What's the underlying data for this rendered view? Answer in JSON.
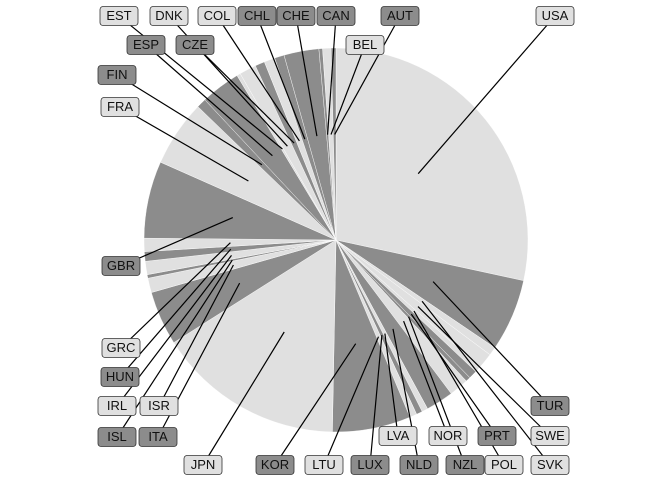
{
  "chart_data": {
    "type": "pie",
    "title": "",
    "start_angle_deg": 0,
    "direction": "clockwise",
    "legend": "none",
    "colors": {
      "light": "#e0e0e0",
      "dark": "#8c8c8c",
      "edge": "#ffffff",
      "leader": "#000000",
      "label_border": "#333333"
    },
    "slices": [
      {
        "label": "USA",
        "value": 28.0,
        "shade": "light"
      },
      {
        "label": "TUR",
        "value": 6.0,
        "shade": "dark"
      },
      {
        "label": "SVK",
        "value": 0.7,
        "shade": "light"
      },
      {
        "label": "SWE",
        "value": 1.3,
        "shade": "light"
      },
      {
        "label": "POL",
        "value": 0.5,
        "shade": "light"
      },
      {
        "label": "PRT",
        "value": 0.7,
        "shade": "dark"
      },
      {
        "label": "NZL",
        "value": 0.4,
        "shade": "dark"
      },
      {
        "label": "NOR",
        "value": 1.6,
        "shade": "light"
      },
      {
        "label": "NLD",
        "value": 2.3,
        "shade": "dark"
      },
      {
        "label": "LVA",
        "value": 0.5,
        "shade": "light"
      },
      {
        "label": "LUX",
        "value": 0.5,
        "shade": "dark"
      },
      {
        "label": "LTU",
        "value": 0.6,
        "shade": "light"
      },
      {
        "label": "KOR",
        "value": 6.5,
        "shade": "dark"
      },
      {
        "label": "JPN",
        "value": 15.5,
        "shade": "light"
      },
      {
        "label": "ITA",
        "value": 4.5,
        "shade": "dark"
      },
      {
        "label": "ISR",
        "value": 1.2,
        "shade": "light"
      },
      {
        "label": "ISL",
        "value": 0.3,
        "shade": "dark"
      },
      {
        "label": "IRL",
        "value": 1.1,
        "shade": "light"
      },
      {
        "label": "HUN",
        "value": 0.8,
        "shade": "dark"
      },
      {
        "label": "GRC",
        "value": 1.1,
        "shade": "light"
      },
      {
        "label": "GBR",
        "value": 6.4,
        "shade": "dark"
      },
      {
        "label": "FRA",
        "value": 5.5,
        "shade": "light"
      },
      {
        "label": "FIN",
        "value": 0.8,
        "shade": "dark"
      },
      {
        "label": "ESP",
        "value": 3.3,
        "shade": "dark"
      },
      {
        "label": "EST",
        "value": 0.3,
        "shade": "light"
      },
      {
        "label": "DNK",
        "value": 1.4,
        "shade": "light"
      },
      {
        "label": "CZE",
        "value": 0.8,
        "shade": "dark"
      },
      {
        "label": "COL",
        "value": 0.9,
        "shade": "light"
      },
      {
        "label": "CHL",
        "value": 0.8,
        "shade": "dark"
      },
      {
        "label": "CHE",
        "value": 2.9,
        "shade": "dark"
      },
      {
        "label": "CAN",
        "value": 0.3,
        "shade": "dark"
      },
      {
        "label": "BEL",
        "value": 0.7,
        "shade": "light"
      },
      {
        "label": "AUT",
        "value": 0.4,
        "shade": "dark"
      }
    ]
  }
}
